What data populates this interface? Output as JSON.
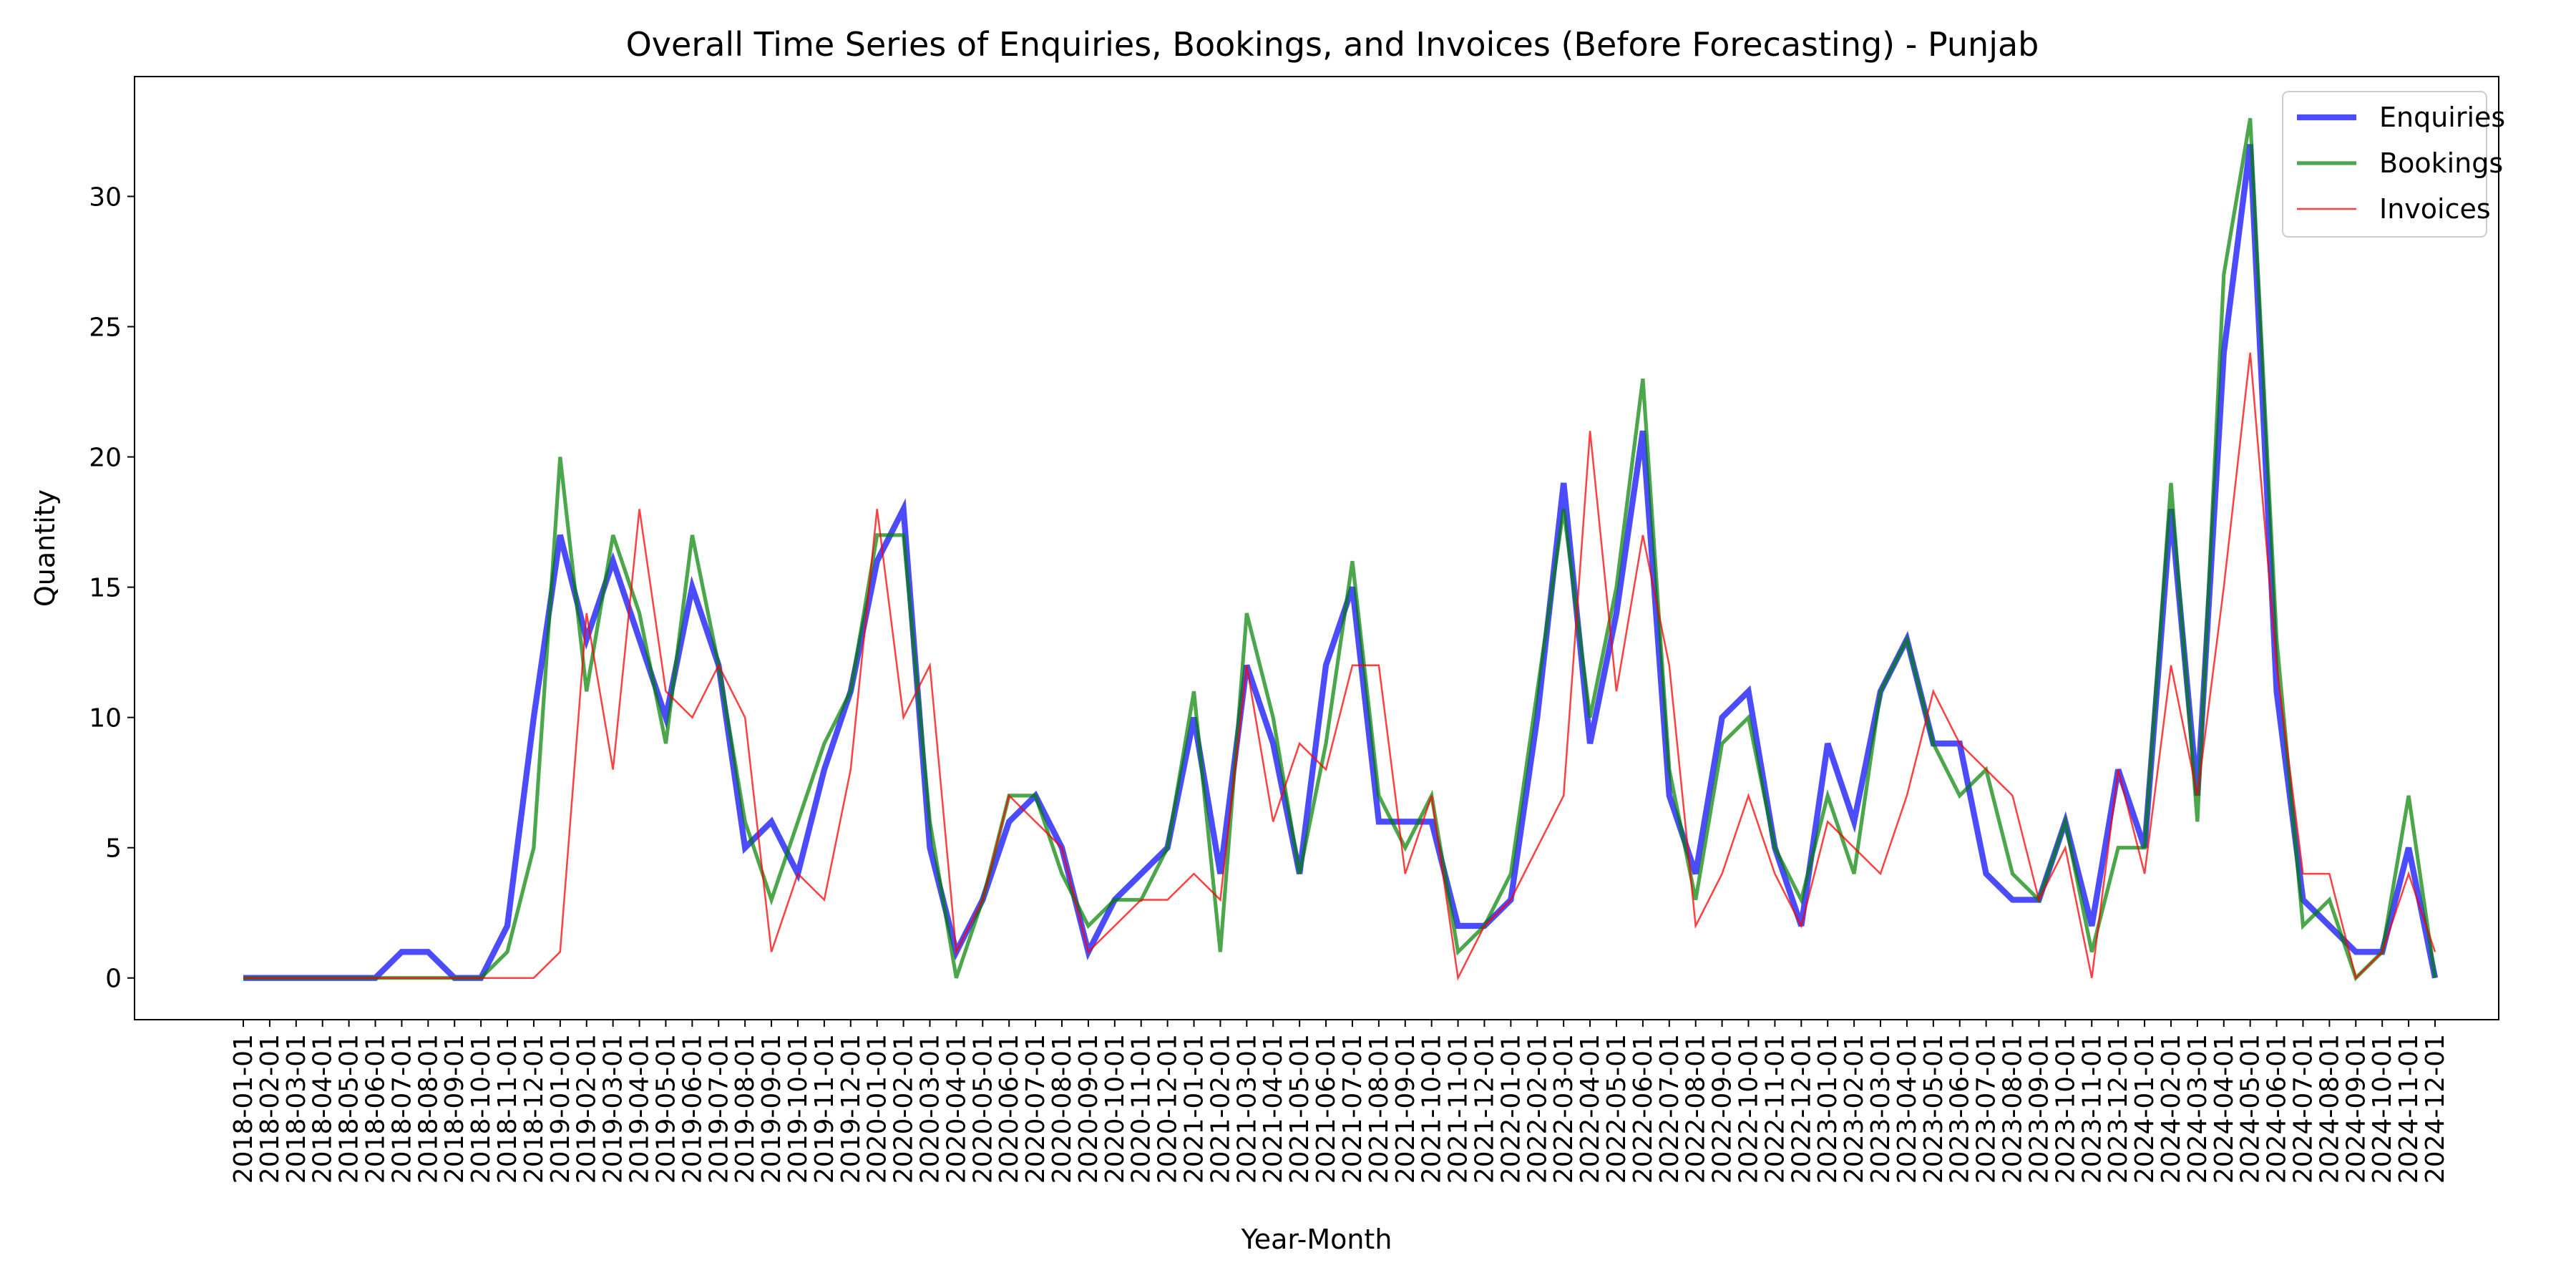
{
  "chart_data": {
    "type": "line",
    "title": "Overall Time Series of Enquiries, Bookings, and Invoices (Before Forecasting) - Punjab",
    "xlabel": "Year-Month",
    "ylabel": "Quantity",
    "ylim": [
      -1.6,
      34.6
    ],
    "yticks": [
      0,
      5,
      10,
      15,
      20,
      25,
      30
    ],
    "grid": false,
    "legend_position": "top-right",
    "x": [
      "2018-01-01",
      "2018-02-01",
      "2018-03-01",
      "2018-04-01",
      "2018-05-01",
      "2018-06-01",
      "2018-07-01",
      "2018-08-01",
      "2018-09-01",
      "2018-10-01",
      "2018-11-01",
      "2018-12-01",
      "2019-01-01",
      "2019-02-01",
      "2019-03-01",
      "2019-04-01",
      "2019-05-01",
      "2019-06-01",
      "2019-07-01",
      "2019-08-01",
      "2019-09-01",
      "2019-10-01",
      "2019-11-01",
      "2019-12-01",
      "2020-01-01",
      "2020-02-01",
      "2020-03-01",
      "2020-04-01",
      "2020-05-01",
      "2020-06-01",
      "2020-07-01",
      "2020-08-01",
      "2020-09-01",
      "2020-10-01",
      "2020-11-01",
      "2020-12-01",
      "2021-01-01",
      "2021-02-01",
      "2021-03-01",
      "2021-04-01",
      "2021-05-01",
      "2021-06-01",
      "2021-07-01",
      "2021-08-01",
      "2021-09-01",
      "2021-10-01",
      "2021-11-01",
      "2021-12-01",
      "2022-01-01",
      "2022-02-01",
      "2022-03-01",
      "2022-04-01",
      "2022-05-01",
      "2022-06-01",
      "2022-07-01",
      "2022-08-01",
      "2022-09-01",
      "2022-10-01",
      "2022-11-01",
      "2022-12-01",
      "2023-01-01",
      "2023-02-01",
      "2023-03-01",
      "2023-04-01",
      "2023-05-01",
      "2023-06-01",
      "2023-07-01",
      "2023-08-01",
      "2023-09-01",
      "2023-10-01",
      "2023-11-01",
      "2023-12-01",
      "2024-01-01",
      "2024-02-01",
      "2024-03-01",
      "2024-04-01",
      "2024-05-01",
      "2024-06-01",
      "2024-07-01",
      "2024-08-01",
      "2024-09-01",
      "2024-10-01",
      "2024-11-01",
      "2024-12-01"
    ],
    "series": [
      {
        "name": "Enquiries",
        "color": "#0000ff",
        "alpha": 0.7,
        "line_width": 4,
        "values": [
          0,
          0,
          0,
          0,
          0,
          0,
          1,
          1,
          0,
          0,
          2,
          10,
          17,
          13,
          16,
          13,
          10,
          15,
          12,
          5,
          6,
          4,
          8,
          11,
          16,
          18,
          5,
          1,
          3,
          6,
          7,
          5,
          1,
          3,
          4,
          5,
          10,
          4,
          12,
          9,
          4,
          12,
          15,
          6,
          6,
          6,
          2,
          2,
          3,
          10,
          19,
          9,
          14,
          21,
          7,
          4,
          10,
          11,
          5,
          2,
          9,
          6,
          11,
          13,
          9,
          9,
          4,
          3,
          3,
          6,
          2,
          8,
          5,
          18,
          7,
          24,
          32,
          11,
          3,
          2,
          1,
          1,
          5,
          0
        ]
      },
      {
        "name": "Bookings",
        "color": "#008000",
        "alpha": 0.7,
        "line_width": 2.5,
        "values": [
          0,
          0,
          0,
          0,
          0,
          0,
          0,
          0,
          0,
          0,
          1,
          5,
          20,
          11,
          17,
          14,
          9,
          17,
          12,
          6,
          3,
          6,
          9,
          11,
          17,
          17,
          6,
          0,
          3,
          7,
          7,
          4,
          2,
          3,
          3,
          5,
          11,
          1,
          14,
          10,
          4,
          9,
          16,
          7,
          5,
          7,
          1,
          2,
          4,
          11,
          18,
          10,
          15,
          23,
          8,
          3,
          9,
          10,
          5,
          3,
          7,
          4,
          11,
          13,
          9,
          7,
          8,
          4,
          3,
          6,
          1,
          5,
          5,
          19,
          6,
          27,
          33,
          13,
          2,
          3,
          0,
          1,
          7,
          0
        ]
      },
      {
        "name": "Invoices",
        "color": "#ff0000",
        "alpha": 0.75,
        "line_width": 1.2,
        "values": [
          0,
          0,
          0,
          0,
          0,
          0,
          0,
          0,
          0,
          0,
          0,
          0,
          1,
          14,
          8,
          18,
          11,
          10,
          12,
          10,
          1,
          4,
          3,
          8,
          18,
          10,
          12,
          1,
          3,
          7,
          6,
          5,
          1,
          2,
          3,
          3,
          4,
          3,
          12,
          6,
          9,
          8,
          12,
          12,
          4,
          7,
          0,
          2,
          3,
          5,
          7,
          21,
          11,
          17,
          12,
          2,
          4,
          7,
          4,
          2,
          6,
          5,
          4,
          7,
          11,
          9,
          8,
          7,
          3,
          5,
          0,
          8,
          4,
          12,
          7,
          15,
          24,
          12,
          4,
          4,
          0,
          1,
          4,
          1
        ]
      }
    ]
  }
}
